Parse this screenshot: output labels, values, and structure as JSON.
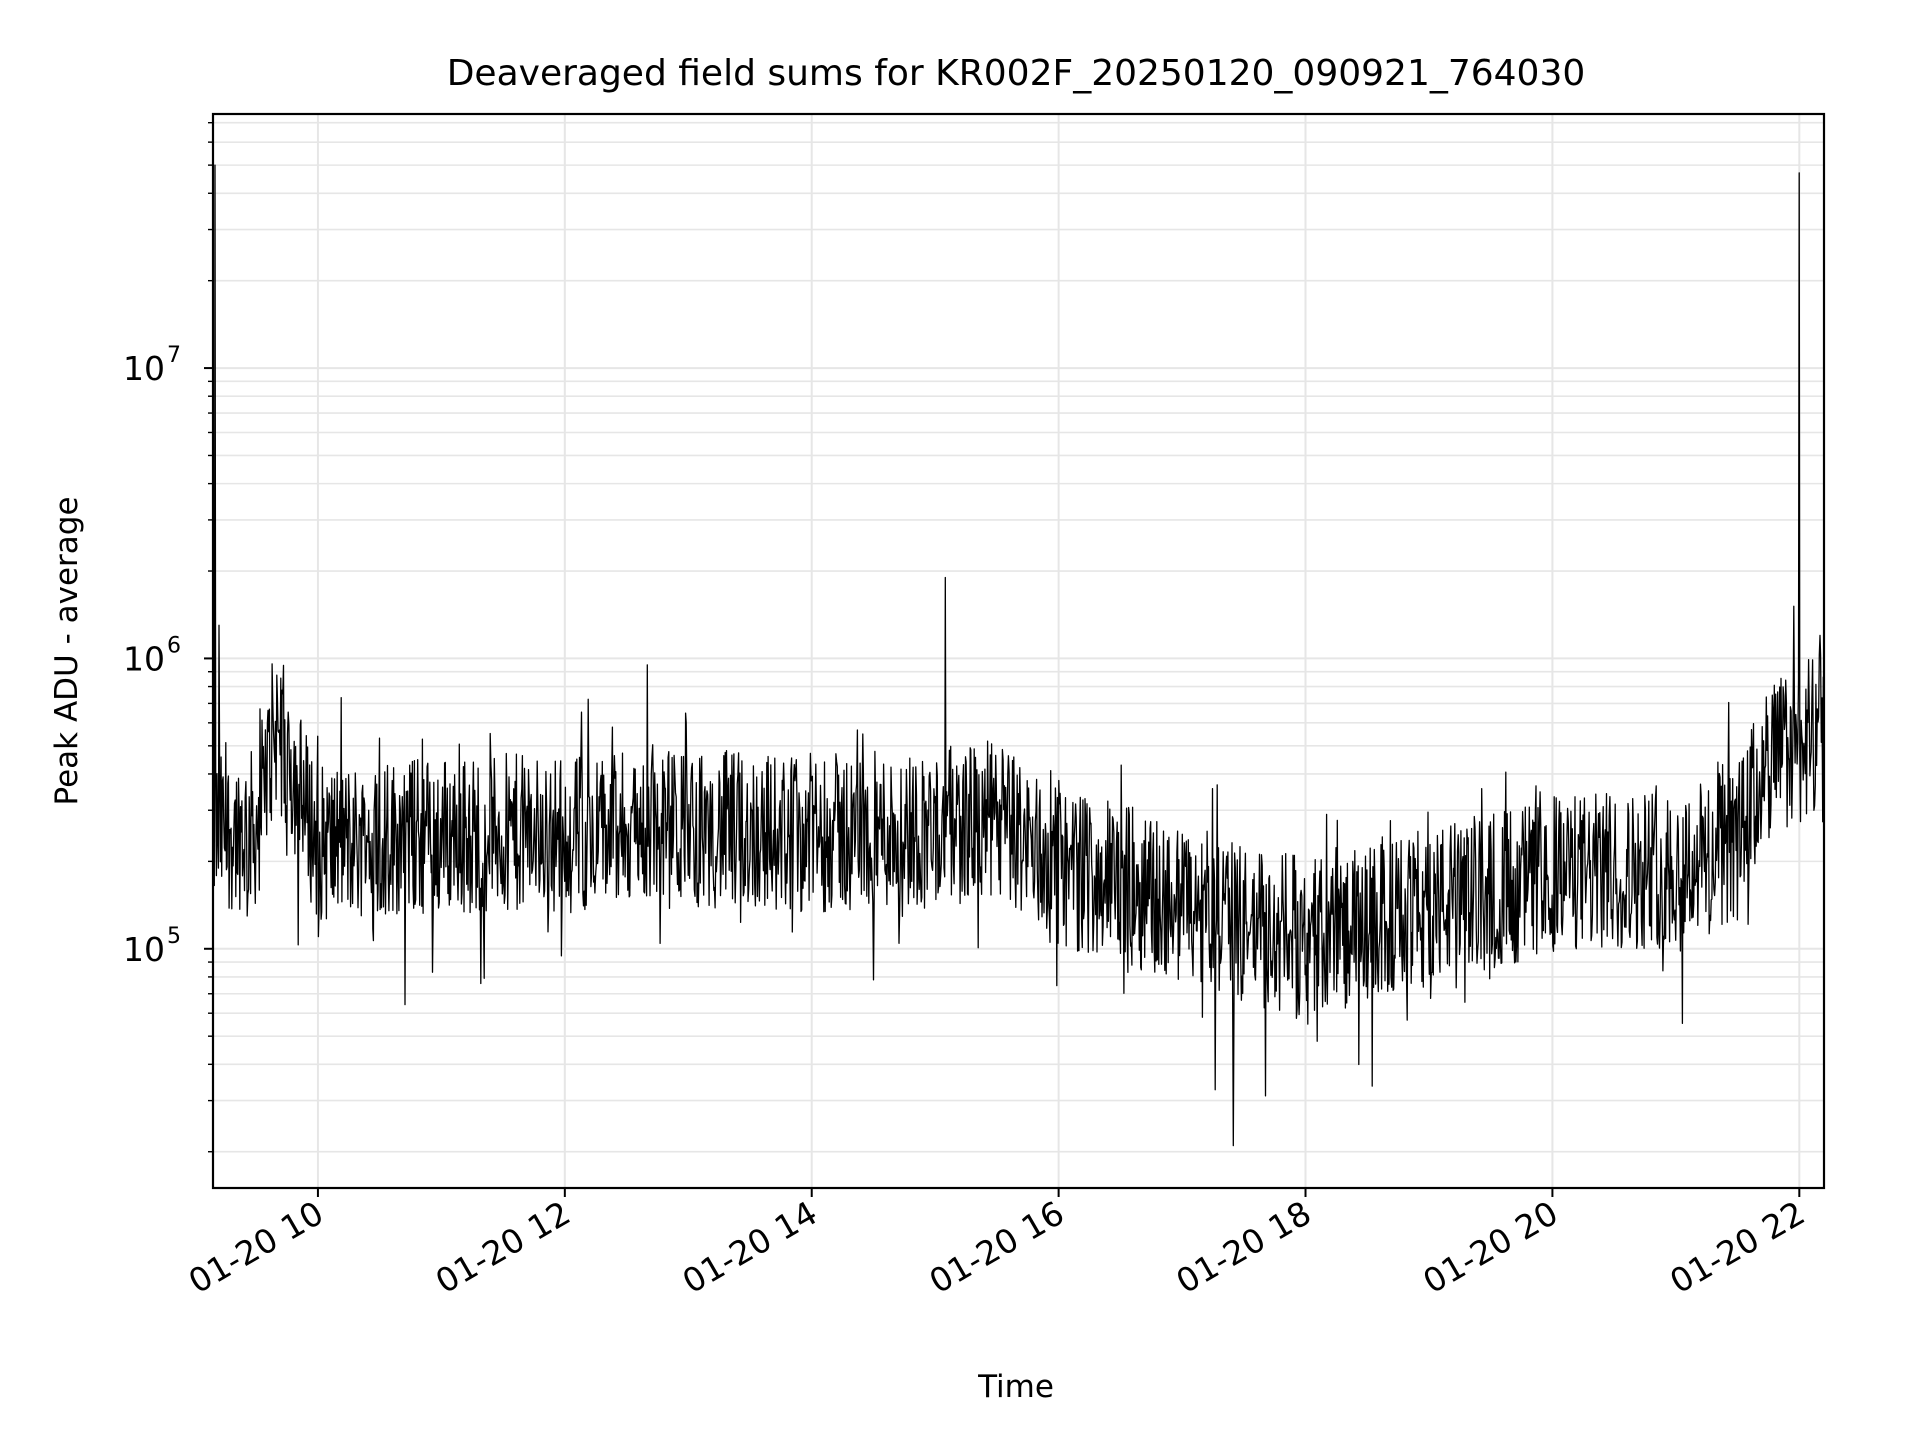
{
  "chart_data": {
    "type": "line",
    "title": "Deaveraged field sums for KR002F_20250120_090921_764030",
    "xlabel": "Time",
    "ylabel": "Peak ADU - average",
    "xaxis": "datetime",
    "xlim": [
      "2025-01-20 09:09",
      "2025-01-20 22:12"
    ],
    "x_ticks": [
      {
        "value": "2025-01-20 10:00",
        "label": "01-20 10"
      },
      {
        "value": "2025-01-20 12:00",
        "label": "01-20 12"
      },
      {
        "value": "2025-01-20 14:00",
        "label": "01-20 14"
      },
      {
        "value": "2025-01-20 16:00",
        "label": "01-20 16"
      },
      {
        "value": "2025-01-20 18:00",
        "label": "01-20 18"
      },
      {
        "value": "2025-01-20 20:00",
        "label": "01-20 20"
      },
      {
        "value": "2025-01-20 22:00",
        "label": "01-20 22"
      }
    ],
    "yscale": "log",
    "ylim": [
      15000,
      75000000
    ],
    "y_ticks": [
      {
        "value": 100000,
        "base": "10",
        "exp": "5"
      },
      {
        "value": 1000000,
        "base": "10",
        "exp": "6"
      },
      {
        "value": 10000000,
        "base": "10",
        "exp": "7"
      }
    ],
    "grid": true,
    "line_color": "#000000",
    "grid_color": "#e6e6e6",
    "series": [
      {
        "x": [
          "2025-01-20 09:10",
          "2025-01-20 09:30",
          "2025-01-20 09:40",
          "2025-01-20 10:00",
          "2025-01-20 11:00",
          "2025-01-20 12:00",
          "2025-01-20 13:00",
          "2025-01-20 14:00",
          "2025-01-20 15:00",
          "2025-01-20 15:30",
          "2025-01-20 16:00",
          "2025-01-20 16:30",
          "2025-01-20 17:00",
          "2025-01-20 17:30",
          "2025-01-20 18:00",
          "2025-01-20 18:30",
          "2025-01-20 19:00",
          "2025-01-20 20:00",
          "2025-01-20 21:00",
          "2025-01-20 21:30",
          "2025-01-20 21:45",
          "2025-01-20 22:10"
        ],
        "y": [
          250000,
          260000,
          600000,
          230000,
          250000,
          250000,
          260000,
          250000,
          260000,
          280000,
          190000,
          170000,
          140000,
          120000,
          110000,
          120000,
          140000,
          180000,
          190000,
          230000,
          450000,
          550000
        ],
        "spikes": [
          {
            "x": "2025-01-20 09:10",
            "y": 50000000
          },
          {
            "x": "2025-01-20 09:12",
            "y": 1300000
          },
          {
            "x": "2025-01-20 12:40",
            "y": 950000
          },
          {
            "x": "2025-01-20 15:05",
            "y": 1900000
          },
          {
            "x": "2025-01-20 17:25",
            "y": 21000
          },
          {
            "x": "2025-01-20 22:00",
            "y": 47000000
          },
          {
            "x": "2025-01-20 22:10",
            "y": 1200000
          }
        ]
      }
    ]
  }
}
